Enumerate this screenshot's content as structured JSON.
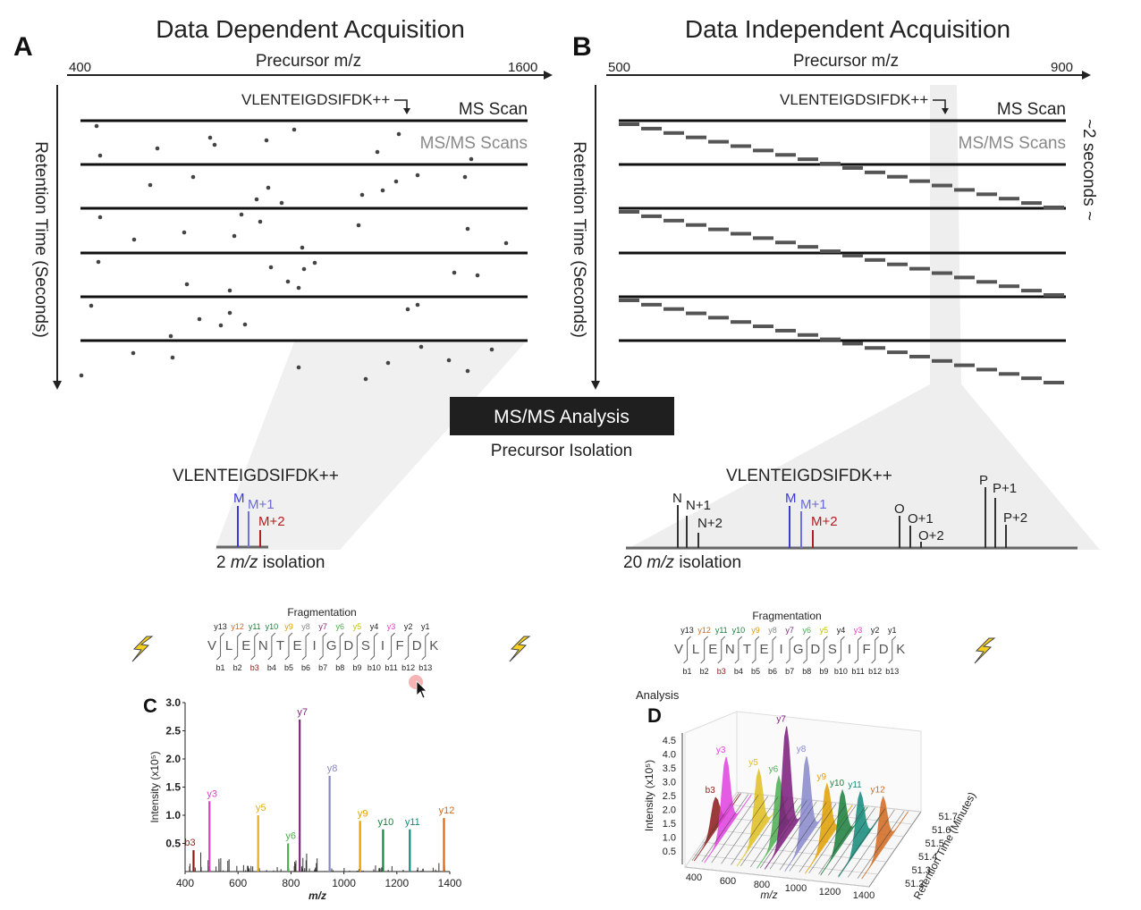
{
  "panelA": {
    "label": "A",
    "title": "Data Dependent Acquisition",
    "xaxis": "Precursor m/z",
    "xmin": "400",
    "xmax": "1600",
    "yaxis": "Retention Time (Seconds)",
    "peptide": "VLENTEIGDSIFDK++",
    "ms_scan": "MS Scan",
    "msms_scans": "MS/MS Scans"
  },
  "panelB": {
    "label": "B",
    "title": "Data Independent Acquisition",
    "xaxis": "Precursor m/z",
    "xmin": "500",
    "xmax": "900",
    "yaxis": "Retention Time (Seconds)",
    "peptide": "VLENTEIGDSIFDK++",
    "ms_scan": "MS Scan",
    "msms_scans": "MS/MS Scans",
    "cycle": "~2 seconds ~"
  },
  "analysis": {
    "box": "MS/MS Analysis",
    "isolation": "Precursor Isolation"
  },
  "isolationA": {
    "peptide": "VLENTEIGDSIFDK++",
    "peaks": [
      "M",
      "M+1",
      "M+2"
    ],
    "label_num": "2",
    "label_mz": "m/z",
    "label_rest": "isolation"
  },
  "isolationB": {
    "peptide": "VLENTEIGDSIFDK++",
    "peaks": [
      "N",
      "N+1",
      "N+2",
      "M",
      "M+1",
      "M+2",
      "O",
      "O+1",
      "O+2",
      "P",
      "P+1",
      "P+2"
    ],
    "label_num": "20",
    "label_mz": "m/z",
    "label_rest": "isolation"
  },
  "fragmentation": {
    "title": "Fragmentation",
    "sequence": [
      "V",
      "L",
      "E",
      "N",
      "T",
      "E",
      "I",
      "G",
      "D",
      "S",
      "I",
      "F",
      "D",
      "K"
    ],
    "y_ions": [
      "y13",
      "y12",
      "y11",
      "y10",
      "y9",
      "y8",
      "y7",
      "y6",
      "y5",
      "y4",
      "y3",
      "y2",
      "y1"
    ],
    "b_ions": [
      "b1",
      "b2",
      "b3",
      "b4",
      "b5",
      "b6",
      "b7",
      "b8",
      "b9",
      "b10",
      "b11",
      "b12",
      "b13"
    ],
    "y_colors": [
      "#222",
      "#d2691e",
      "#1a7f3c",
      "#1a7f3c",
      "#e0a000",
      "#888",
      "#7b2a7b",
      "#4caf50",
      "#c0c000",
      "#222",
      "#e040c0",
      "#222",
      "#222"
    ],
    "b_colors": [
      "#222",
      "#222",
      "#8b1a1a",
      "#222",
      "#222",
      "#222",
      "#222",
      "#222",
      "#222",
      "#222",
      "#222",
      "#222",
      "#222"
    ]
  },
  "panelC": {
    "label": "C",
    "ylabel": "Intensity (x10⁵)",
    "xlabel": "m/z",
    "x_ticks": [
      "400",
      "600",
      "800",
      "1000",
      "1200",
      "1400"
    ],
    "y_ticks": [
      "0.5",
      "1.0",
      "1.5",
      "2.0",
      "2.5",
      "3.0"
    ]
  },
  "panelD": {
    "label": "D",
    "corner_text": "Analysis",
    "ylabel": "Intensity (x10⁵)",
    "xlabel": "m/z",
    "zlabel": "Retention Time (Minutes)",
    "x_ticks": [
      "400",
      "600",
      "800",
      "1000",
      "1200",
      "1400"
    ],
    "y_ticks": [
      "0.5",
      "1.0",
      "1.5",
      "2.0",
      "2.5",
      "3.0",
      "3.5",
      "4.0",
      "4.5"
    ],
    "z_ticks": [
      "51.2",
      "51.3",
      "51.4",
      "51.5",
      "51.6",
      "51.7"
    ]
  },
  "chart_data": [
    {
      "type": "bar",
      "panel": "C",
      "xlabel": "m/z",
      "ylabel": "Intensity (x10⁵)",
      "xlim": [
        400,
        1400
      ],
      "ylim": [
        0,
        3.0
      ],
      "series": [
        {
          "name": "b3",
          "x": 432,
          "value": 0.38,
          "color": "#8b1a1a"
        },
        {
          "name": "y3",
          "x": 492,
          "value": 1.25,
          "color": "#e040c0"
        },
        {
          "name": "y5",
          "x": 676,
          "value": 1.0,
          "color": "#e0b020"
        },
        {
          "name": "y6",
          "x": 789,
          "value": 0.5,
          "color": "#4caf50"
        },
        {
          "name": "y7",
          "x": 833,
          "value": 2.7,
          "color": "#7b2a7b"
        },
        {
          "name": "y8",
          "x": 946,
          "value": 1.7,
          "color": "#8888bb"
        },
        {
          "name": "y9",
          "x": 1061,
          "value": 0.9,
          "color": "#e0a000"
        },
        {
          "name": "y10",
          "x": 1148,
          "value": 0.75,
          "color": "#1a7f3c"
        },
        {
          "name": "y11",
          "x": 1249,
          "value": 0.75,
          "color": "#138a7a"
        },
        {
          "name": "y12",
          "x": 1378,
          "value": 0.95,
          "color": "#d2691e"
        }
      ]
    },
    {
      "type": "area",
      "panel": "D",
      "xlabel": "m/z",
      "ylabel": "Intensity (x10⁵)",
      "zlabel": "Retention Time (Minutes)",
      "ylim": [
        0,
        4.5
      ],
      "zlim": [
        51.2,
        51.7
      ],
      "series": [
        {
          "name": "b3",
          "x": 432,
          "value": 1.4,
          "color": "#8b1a1a"
        },
        {
          "name": "y3",
          "x": 492,
          "value": 3.2,
          "color": "#e040e0"
        },
        {
          "name": "y5",
          "x": 676,
          "value": 2.8,
          "color": "#e0c020"
        },
        {
          "name": "y6",
          "x": 789,
          "value": 2.6,
          "color": "#4caf50"
        },
        {
          "name": "y7",
          "x": 833,
          "value": 4.8,
          "color": "#7b1a7b"
        },
        {
          "name": "y8",
          "x": 946,
          "value": 3.6,
          "color": "#8888cc"
        },
        {
          "name": "y9",
          "x": 1061,
          "value": 2.5,
          "color": "#e0a000"
        },
        {
          "name": "y10",
          "x": 1148,
          "value": 2.3,
          "color": "#1a7f3c"
        },
        {
          "name": "y11",
          "x": 1249,
          "value": 2.3,
          "color": "#138a7a"
        },
        {
          "name": "y12",
          "x": 1378,
          "value": 2.2,
          "color": "#d2691e"
        }
      ]
    }
  ]
}
